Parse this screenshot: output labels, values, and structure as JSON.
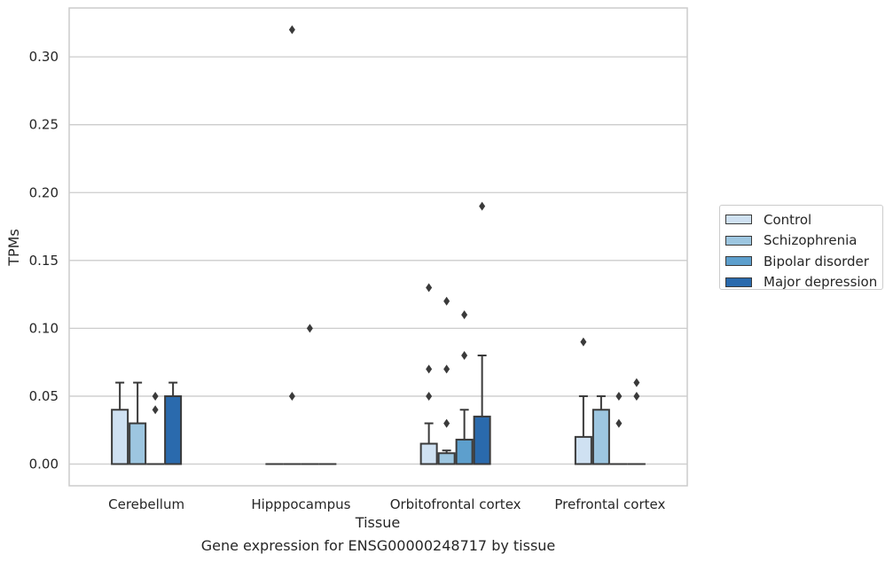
{
  "chart_data": {
    "type": "box",
    "title": "",
    "xlabel": "Tissue",
    "ylabel": "TPMs",
    "caption": "Gene expression for ENSG00000248717 by tissue",
    "categories": [
      "Cerebellum",
      "Hipppocampus",
      "Orbitofrontal cortex",
      "Prefrontal cortex"
    ],
    "ylim": [
      -0.016,
      0.336
    ],
    "yticks": [
      0.0,
      0.05,
      0.1,
      0.15,
      0.2,
      0.25,
      0.3
    ],
    "ytick_labels": [
      "0.00",
      "0.05",
      "0.10",
      "0.15",
      "0.20",
      "0.25",
      "0.30"
    ],
    "grid": "horizontal",
    "legend_position": "right",
    "series": [
      {
        "name": "Control",
        "color": "#cfe1f2",
        "boxes": [
          {
            "q1": 0.0,
            "median": 0.0,
            "q3": 0.04,
            "whislo": 0.0,
            "whishi": 0.06,
            "fliers": []
          },
          {
            "q1": 0.0,
            "median": 0.0,
            "q3": 0.0,
            "whislo": 0.0,
            "whishi": 0.0,
            "fliers": []
          },
          {
            "q1": 0.0,
            "median": 0.0,
            "q3": 0.015,
            "whislo": 0.0,
            "whishi": 0.03,
            "fliers": [
              0.05,
              0.07,
              0.13
            ]
          },
          {
            "q1": 0.0,
            "median": 0.0,
            "q3": 0.02,
            "whislo": 0.0,
            "whishi": 0.05,
            "fliers": [
              0.09
            ]
          }
        ]
      },
      {
        "name": "Schizophrenia",
        "color": "#9dc6e0",
        "boxes": [
          {
            "q1": 0.0,
            "median": 0.0,
            "q3": 0.03,
            "whislo": 0.0,
            "whishi": 0.06,
            "fliers": []
          },
          {
            "q1": 0.0,
            "median": 0.0,
            "q3": 0.0,
            "whislo": 0.0,
            "whishi": 0.0,
            "fliers": [
              0.05,
              0.32
            ]
          },
          {
            "q1": 0.0,
            "median": 0.0,
            "q3": 0.008,
            "whislo": 0.0,
            "whishi": 0.01,
            "fliers": [
              0.03,
              0.07,
              0.12
            ]
          },
          {
            "q1": 0.0,
            "median": 0.0,
            "q3": 0.04,
            "whislo": 0.0,
            "whishi": 0.05,
            "fliers": []
          }
        ]
      },
      {
        "name": "Bipolar disorder",
        "color": "#5d9fcd",
        "boxes": [
          {
            "q1": 0.0,
            "median": 0.0,
            "q3": 0.0,
            "whislo": 0.0,
            "whishi": 0.0,
            "fliers": [
              0.04,
              0.05
            ]
          },
          {
            "q1": 0.0,
            "median": 0.0,
            "q3": 0.0,
            "whislo": 0.0,
            "whishi": 0.0,
            "fliers": [
              0.1
            ]
          },
          {
            "q1": 0.0,
            "median": 0.0,
            "q3": 0.018,
            "whislo": 0.0,
            "whishi": 0.04,
            "fliers": [
              0.08,
              0.11
            ]
          },
          {
            "q1": 0.0,
            "median": 0.0,
            "q3": 0.0,
            "whislo": 0.0,
            "whishi": 0.0,
            "fliers": [
              0.03,
              0.05
            ]
          }
        ]
      },
      {
        "name": "Major depression",
        "color": "#2a6aad",
        "boxes": [
          {
            "q1": 0.0,
            "median": 0.0,
            "q3": 0.05,
            "whislo": 0.0,
            "whishi": 0.06,
            "fliers": []
          },
          {
            "q1": 0.0,
            "median": 0.0,
            "q3": 0.0,
            "whislo": 0.0,
            "whishi": 0.0,
            "fliers": []
          },
          {
            "q1": 0.0,
            "median": 0.0,
            "q3": 0.035,
            "whislo": 0.0,
            "whishi": 0.08,
            "fliers": [
              0.19
            ]
          },
          {
            "q1": 0.0,
            "median": 0.0,
            "q3": 0.0,
            "whislo": 0.0,
            "whishi": 0.0,
            "fliers": [
              0.05,
              0.06
            ]
          }
        ]
      }
    ]
  }
}
